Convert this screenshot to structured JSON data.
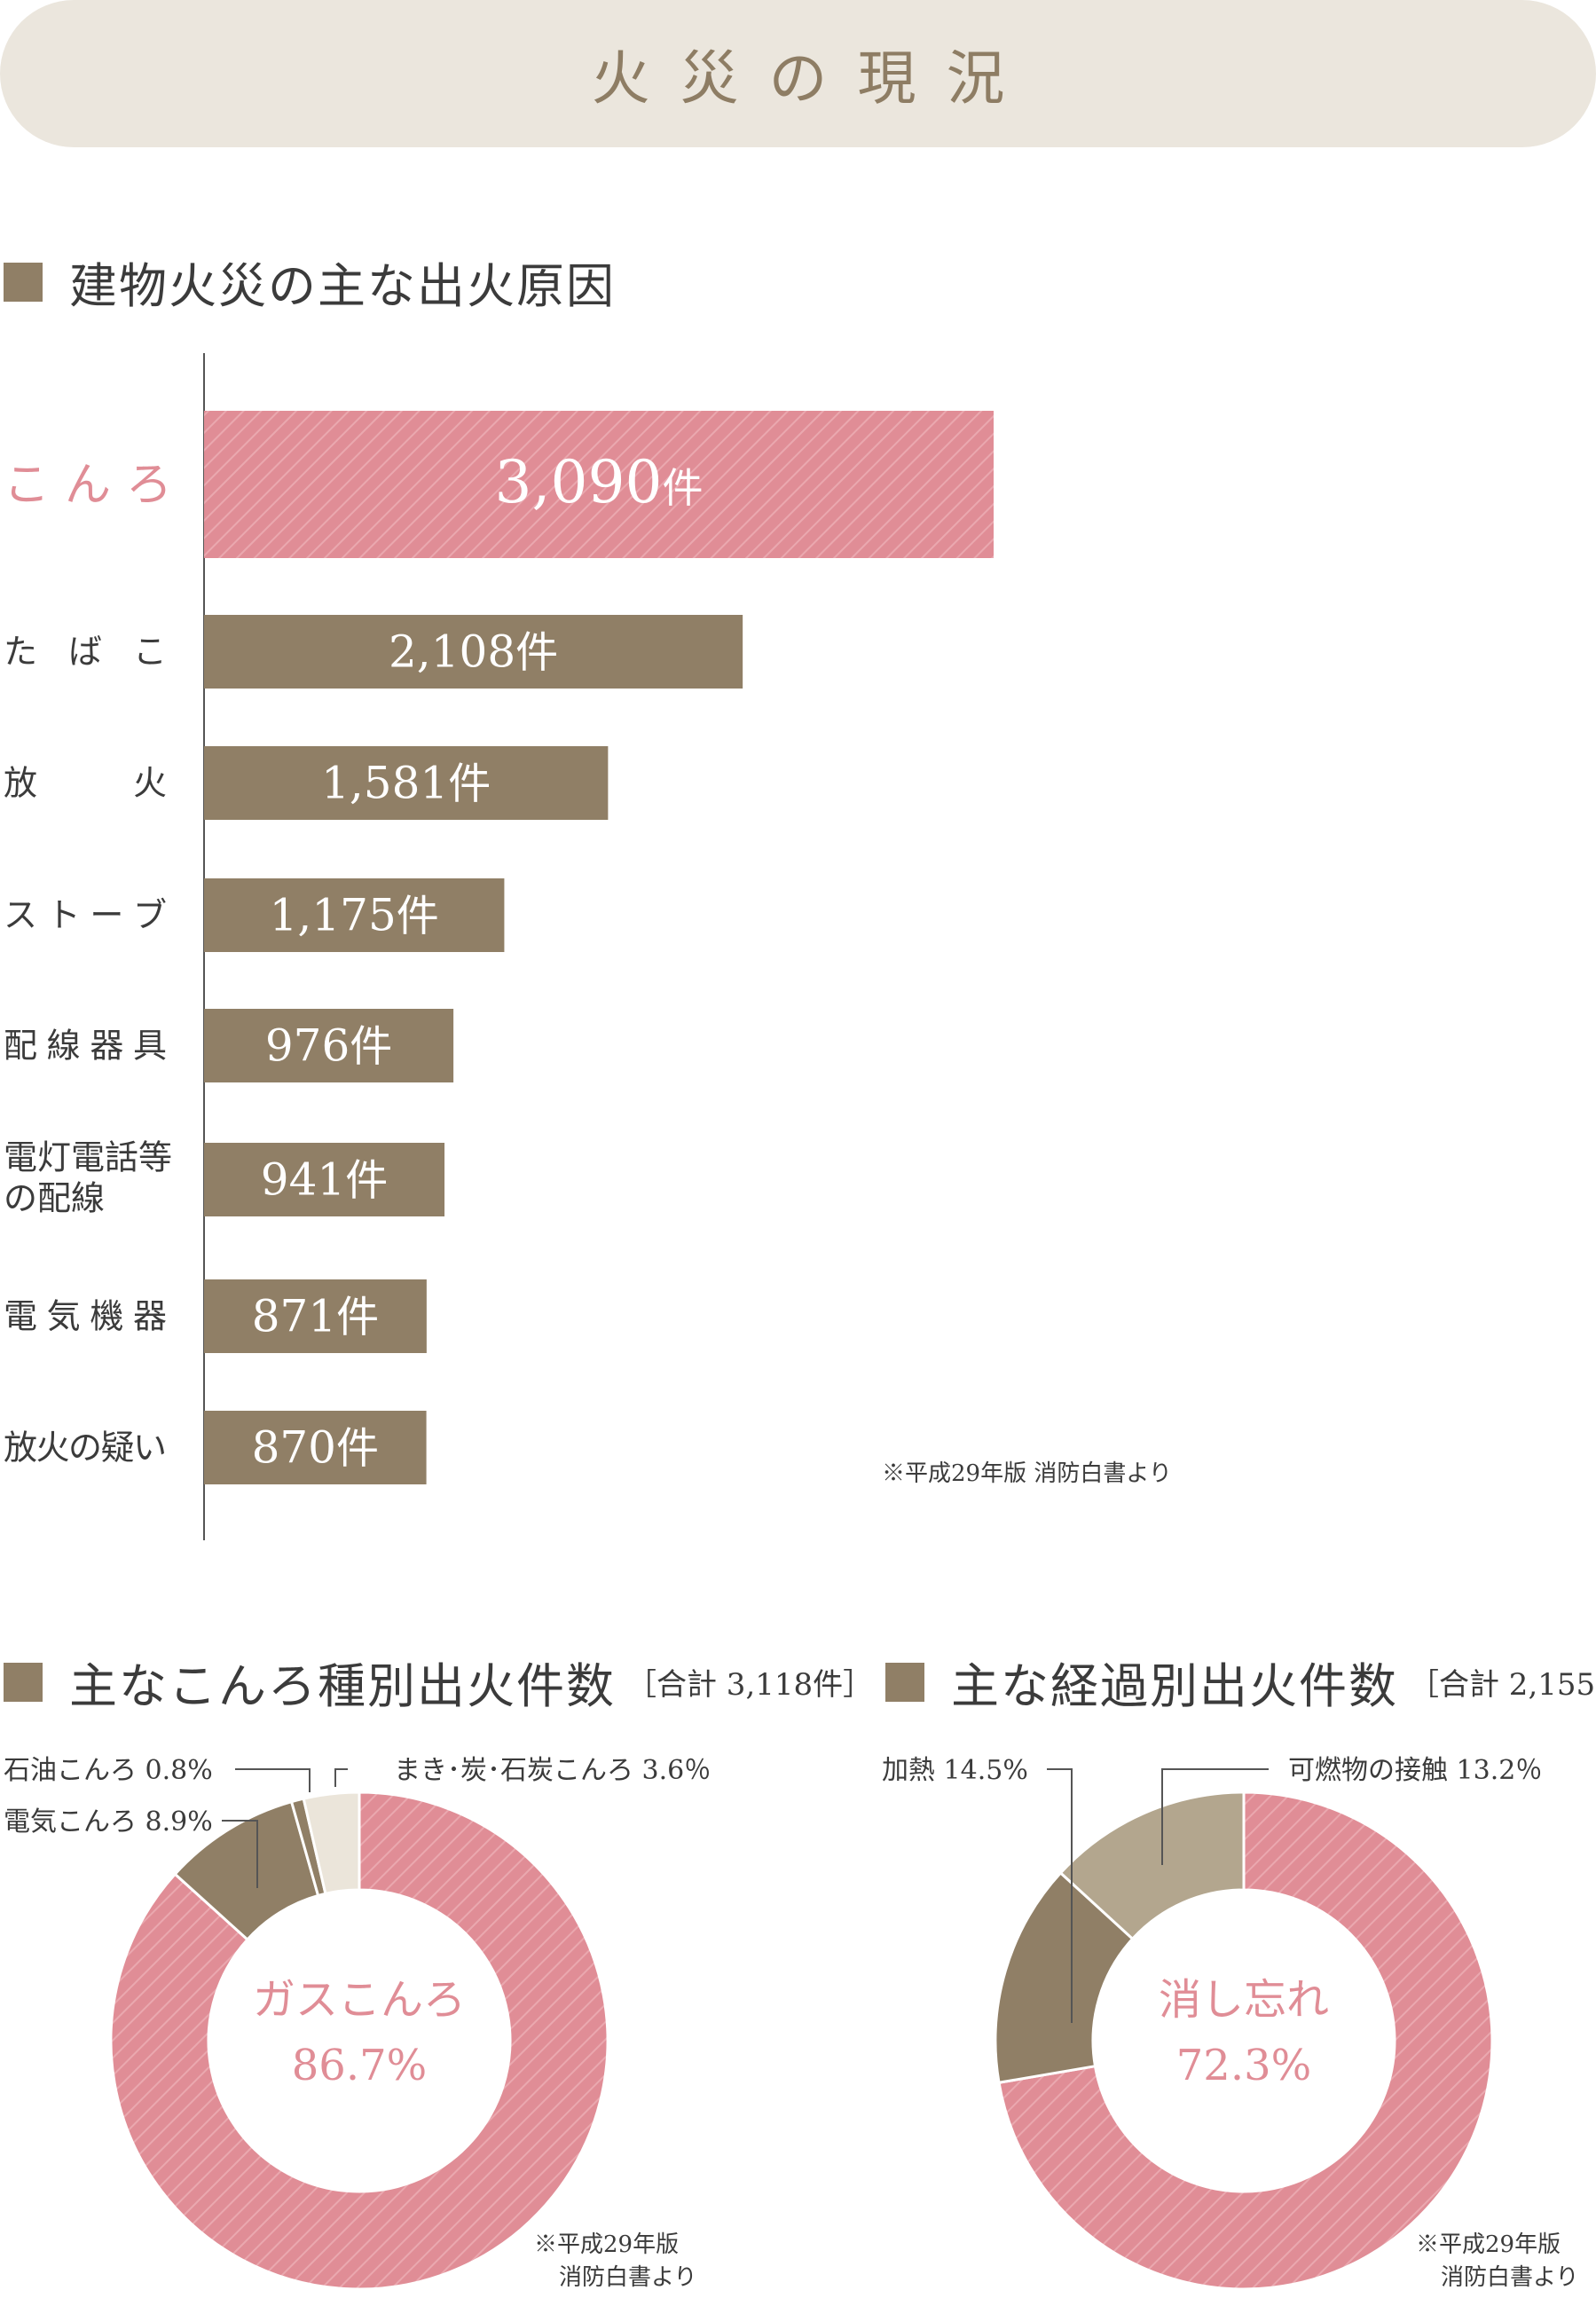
{
  "banner": {
    "title": "火災の現況"
  },
  "bar_section": {
    "title": "建物火災の主な出火原因",
    "source": "※平成29年版 消防白書より"
  },
  "pie_left": {
    "title": "主なこんろ種別出火件数",
    "total": "［合計 3,118件］",
    "center_label": "ガスこんろ",
    "center_value": "86.7%",
    "labels": [
      "石油こんろ 0.8%",
      "まき･炭･石炭こんろ 3.6％",
      "電気こんろ 8.9%"
    ],
    "source_lines": [
      "※平成29年版",
      "消防白書より"
    ]
  },
  "pie_right": {
    "title": "主な経過別出火件数",
    "total": "［合計 2,155件］",
    "center_label": "消し忘れ",
    "center_value": "72.3%",
    "labels": [
      "加熱 14.5%",
      "可燃物の接触 13.2％"
    ],
    "source_lines": [
      "※平成29年版",
      "消防白書より"
    ]
  },
  "colors": {
    "pink": "#e08d96",
    "brown": "#907f66",
    "tan": "#b3a68e",
    "cream": "#ebe5da",
    "banner": "#ebe6dd"
  },
  "chart_data": [
    {
      "type": "bar",
      "orientation": "horizontal",
      "categories": [
        "こんろ",
        "たばこ",
        "放火",
        "ストーブ",
        "配線器具",
        "電灯電話等の配線",
        "電気機器",
        "放火の疑い"
      ],
      "category_labels": [
        [
          "こ ん ろ"
        ],
        [
          "た ば こ"
        ],
        [
          "放　　火"
        ],
        [
          "ス ト ー ブ"
        ],
        [
          "配線器具"
        ],
        [
          "電灯電話等",
          "の配線"
        ],
        [
          "電気機器"
        ],
        [
          "放火の疑い"
        ]
      ],
      "values": [
        3090,
        2108,
        1581,
        1175,
        976,
        941,
        871,
        870
      ],
      "value_labels": [
        "3,090",
        "2,108",
        "1,581",
        "1,175",
        "976",
        "941",
        "871",
        "870"
      ],
      "unit": "件",
      "highlight_index": 0
    },
    {
      "type": "pie",
      "style": "donut",
      "slices": [
        {
          "label": "ガスこんろ",
          "value": 86.7
        },
        {
          "label": "電気こんろ",
          "value": 8.9
        },
        {
          "label": "石油こんろ",
          "value": 0.8
        },
        {
          "label": "まき･炭･石炭こんろ",
          "value": 3.6
        }
      ]
    },
    {
      "type": "pie",
      "style": "donut",
      "slices": [
        {
          "label": "消し忘れ",
          "value": 72.3
        },
        {
          "label": "加熱",
          "value": 14.5
        },
        {
          "label": "可燃物の接触",
          "value": 13.2
        }
      ]
    }
  ]
}
